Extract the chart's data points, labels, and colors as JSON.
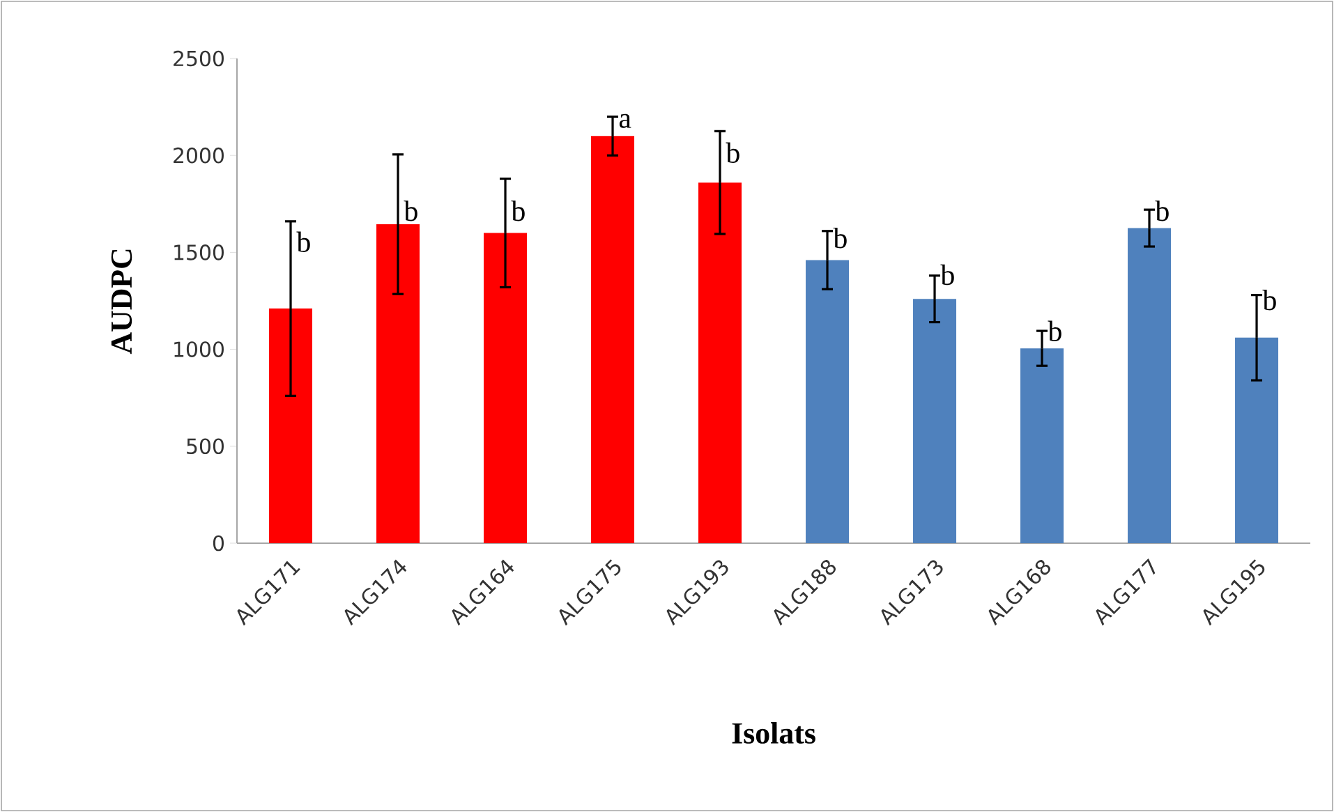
{
  "chart_data": {
    "type": "bar",
    "xlabel": "Isolats",
    "ylabel": "AUDPC",
    "categories": [
      "ALG171",
      "ALG174",
      "ALG164",
      "ALG175",
      "ALG193",
      "ALG188",
      "ALG173",
      "ALG168",
      "ALG177",
      "ALG195"
    ],
    "values": [
      1210,
      1645,
      1600,
      2100,
      1860,
      1460,
      1260,
      1005,
      1625,
      1060
    ],
    "errors": [
      450,
      360,
      280,
      100,
      265,
      150,
      120,
      90,
      95,
      220
    ],
    "colors": [
      "#ff0000",
      "#ff0000",
      "#ff0000",
      "#ff0000",
      "#ff0000",
      "#4f81bd",
      "#4f81bd",
      "#4f81bd",
      "#4f81bd",
      "#4f81bd"
    ],
    "ylim": [
      0,
      2500
    ],
    "yticks": [
      0,
      500,
      1000,
      1500,
      2000,
      2500
    ],
    "grid": false,
    "annotations": [
      {
        "text": "b",
        "x": "ALG171",
        "y": 1500
      },
      {
        "text": "b",
        "x": "ALG174",
        "y": 1660
      },
      {
        "text": "b",
        "x": "ALG164",
        "y": 1660
      },
      {
        "text": "a",
        "x": "ALG175",
        "y": 2140
      },
      {
        "text": "b",
        "x": "ALG193",
        "y": 1960
      },
      {
        "text": "b",
        "x": "ALG188",
        "y": 1520
      },
      {
        "text": "b",
        "x": "ALG173",
        "y": 1330
      },
      {
        "text": "b",
        "x": "ALG168",
        "y": 1040
      },
      {
        "text": "b",
        "x": "ALG177",
        "y": 1660
      },
      {
        "text": "b",
        "x": "ALG195",
        "y": 1200
      }
    ]
  }
}
